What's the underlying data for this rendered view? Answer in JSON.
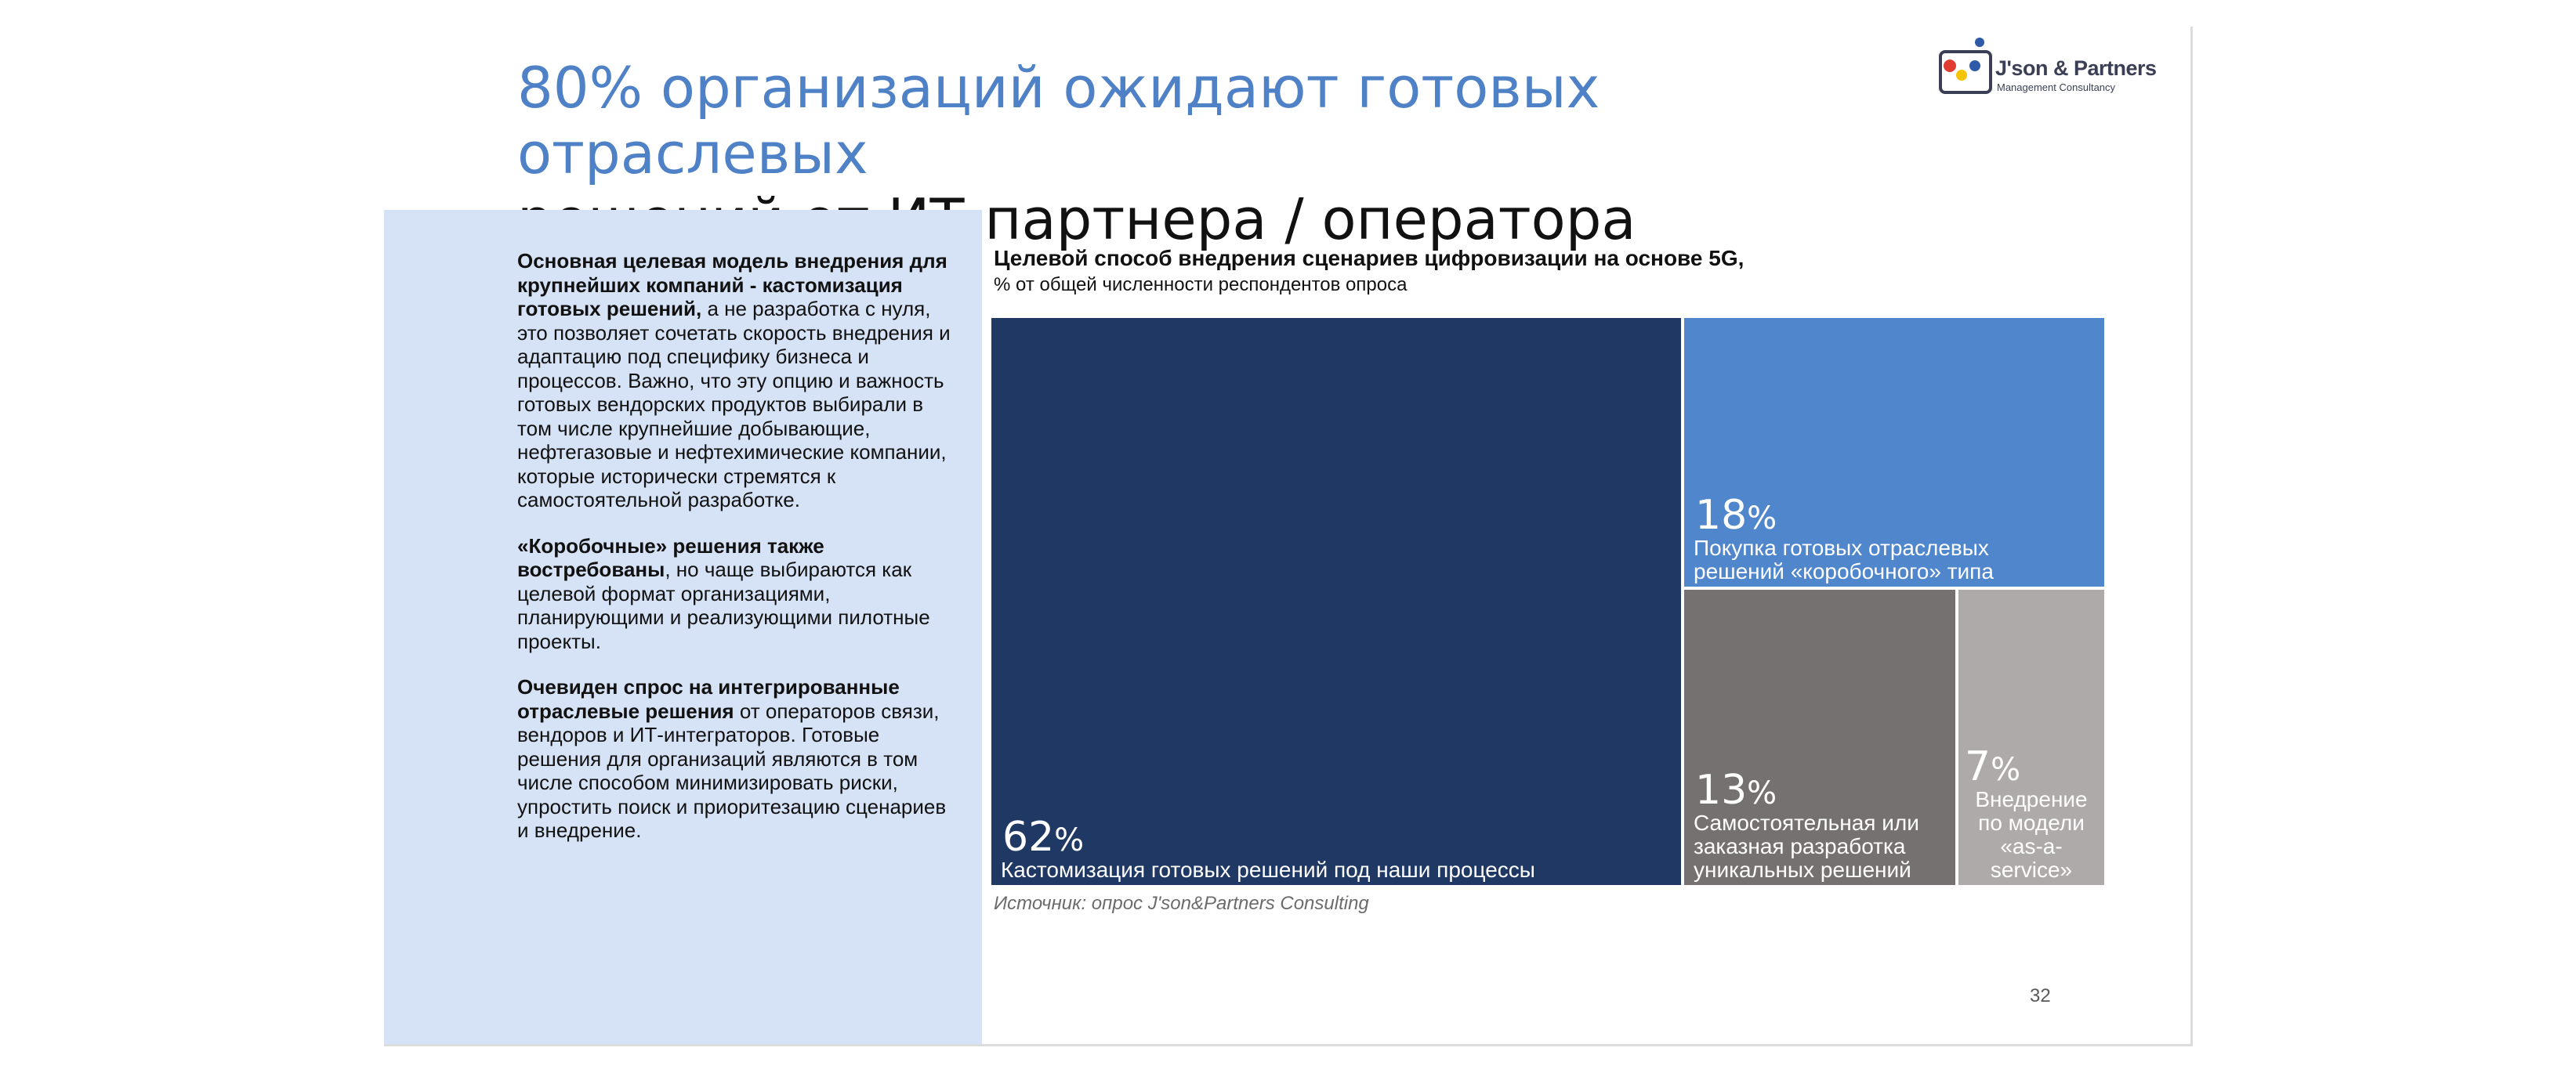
{
  "title": {
    "line1": "80% организаций ожидают готовых отраслевых",
    "line2": "решений от ИТ-партнера / оператора",
    "line1_color": "#4f81c7",
    "line2_color": "#111111"
  },
  "logo": {
    "name": "J'son & Partners",
    "subtitle": "Management Consultancy"
  },
  "left_panel": {
    "background": "#d6e2f5",
    "p1_bold": "Основная целевая модель внедрения для крупнейших компаний - кастомизация готовых решений,",
    "p1_text": " а не разработка с нуля, это позволяет сочетать скорость внедрения и адаптацию под специфику бизнеса и процессов. Важно, что эту опцию и важность готовых вендорских продуктов выбирали в том числе крупнейшие добывающие, нефтегазовые и нефтехимические компании, которые исторически стремятся к самостоятельной разработке.",
    "p2_bold": "«Коробочные» решения также востребованы",
    "p2_text": ", но чаще выбираются как целевой формат организациями, планирующими и реализующими пилотные проекты.",
    "p3_bold": "Очевиден спрос на интегрированные отраслевые решения",
    "p3_text": " от операторов связи, вендоров и ИТ-интеграторов. Готовые решения для организаций являются в том числе способом минимизировать риски, упростить поиск и приоритезацию сценариев и внедрение."
  },
  "chart_data": {
    "type": "treemap",
    "title": "Целевой способ внедрения сценариев цифровизации на основе 5G,",
    "subtitle": "% от общей численности респондентов опроса",
    "unit": "%",
    "items": [
      {
        "label": "Кастомизация готовых решений под наши процессы",
        "value": 62,
        "value_text": "62",
        "color": "#203864"
      },
      {
        "label": "Покупка готовых отраслевых решений «коробочного» типа",
        "value": 18,
        "value_text": "18",
        "color": "#4f86cc"
      },
      {
        "label": "Самостоятельная или заказная разработка уникальных решений",
        "value": 13,
        "value_text": "13",
        "color": "#767171"
      },
      {
        "label": "Внедрение по модели «as-a-service»",
        "value": 7,
        "value_text": "7",
        "color": "#aeaaaa"
      }
    ]
  },
  "source": "Источник: опрос J'son&Partners Consulting",
  "page_number": "32"
}
